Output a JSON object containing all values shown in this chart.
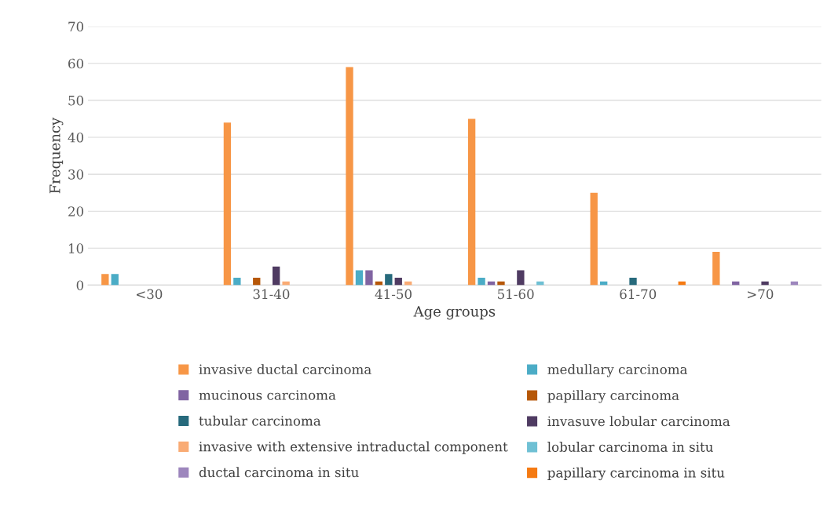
{
  "chart_data": {
    "type": "bar",
    "xlabel": "Age groups",
    "ylabel": "Frequency",
    "categories": [
      "<30",
      "31-40",
      "41-50",
      "51-60",
      "61-70",
      ">70"
    ],
    "series": [
      {
        "name": "invasive ductal carcinoma",
        "color": "#f79646",
        "values": [
          3,
          44,
          59,
          45,
          25,
          9
        ]
      },
      {
        "name": "medullary carcinoma",
        "color": "#4bacc6",
        "values": [
          3,
          2,
          4,
          2,
          1,
          0
        ]
      },
      {
        "name": "mucinous carcinoma",
        "color": "#8064a2",
        "values": [
          0,
          0,
          4,
          1,
          0,
          1
        ]
      },
      {
        "name": "papillary carcinoma",
        "color": "#b65708",
        "values": [
          0,
          2,
          1,
          1,
          0,
          0
        ]
      },
      {
        "name": "tubular carcinoma",
        "color": "#276a7c",
        "values": [
          0,
          0,
          3,
          0,
          2,
          0
        ]
      },
      {
        "name": "invasuve lobular carcinoma",
        "color": "#4f3b62",
        "values": [
          0,
          5,
          2,
          4,
          0,
          1
        ]
      },
      {
        "name": "invasive with extensive intraductal component",
        "color": "#f9ab74",
        "values": [
          0,
          1,
          1,
          0,
          0,
          0
        ]
      },
      {
        "name": "lobular carcinoma in situ",
        "color": "#6fc0d4",
        "values": [
          0,
          0,
          0,
          1,
          0,
          0
        ]
      },
      {
        "name": "ductal carcinoma in situ",
        "color": "#9d86bd",
        "values": [
          0,
          0,
          0,
          0,
          0,
          1
        ]
      },
      {
        "name": "papillary carcinoma in situ",
        "color": "#f57a12",
        "values": [
          0,
          0,
          0,
          0,
          1,
          0
        ]
      }
    ],
    "ylim": [
      0,
      70
    ],
    "yticks": [
      0,
      10,
      20,
      30,
      40,
      50,
      60,
      70
    ],
    "grid": "y",
    "legend": "bottom"
  }
}
